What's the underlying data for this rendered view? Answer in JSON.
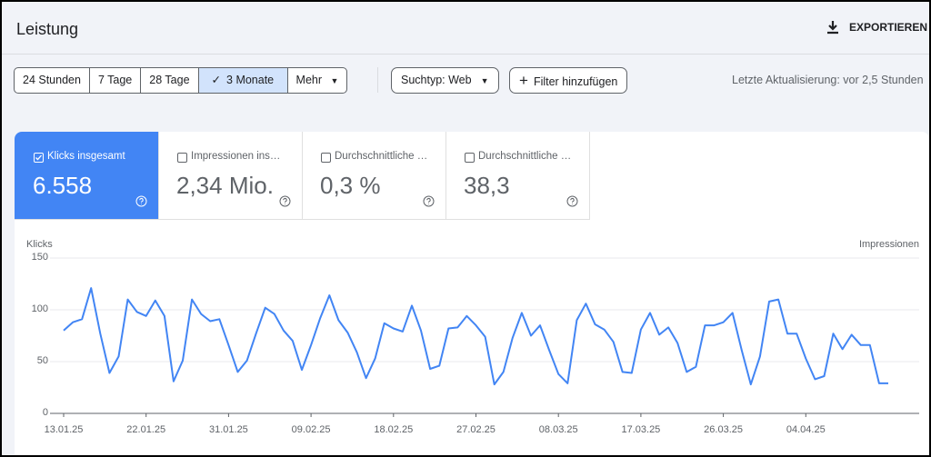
{
  "header": {
    "title": "Leistung",
    "export": "EXPORTIEREN"
  },
  "toolbar": {
    "ranges": [
      "24 Stunden",
      "7 Tage",
      "28 Tage",
      "3 Monate",
      "Mehr"
    ],
    "search_type": "Suchtyp: Web",
    "filter": "Filter hinzufügen",
    "last_update": "Letzte Aktualisierung: vor 2,5 Stunden"
  },
  "metrics": [
    {
      "label": "Klicks insgesamt",
      "value": "6.558"
    },
    {
      "label": "Impressionen ins…",
      "value": "2,34 Mio."
    },
    {
      "label": "Durchschnittliche …",
      "value": "0,3 %"
    },
    {
      "label": "Durchschnittliche …",
      "value": "38,3"
    }
  ],
  "chart_data": {
    "type": "line",
    "y_axis_label": "Klicks",
    "y2_axis_label": "Impressionen",
    "categories": [
      "13.01.25",
      null,
      null,
      null,
      null,
      null,
      null,
      null,
      null,
      "22.01.25",
      null,
      null,
      null,
      null,
      null,
      null,
      null,
      null,
      "31.01.25",
      null,
      null,
      null,
      null,
      null,
      null,
      null,
      null,
      "09.02.25",
      null,
      null,
      null,
      null,
      null,
      null,
      null,
      null,
      "18.02.25",
      null,
      null,
      null,
      null,
      null,
      null,
      null,
      null,
      "27.02.25",
      null,
      null,
      null,
      null,
      null,
      null,
      null,
      null,
      "08.03.25",
      null,
      null,
      null,
      null,
      null,
      null,
      null,
      null,
      "17.03.25",
      null,
      null,
      null,
      null,
      null,
      null,
      null,
      null,
      "26.03.25",
      null,
      null,
      null,
      null,
      null,
      null,
      null,
      null,
      "04.04.25",
      null,
      null,
      null,
      null,
      null,
      null,
      null,
      null,
      null
    ],
    "values": [
      80,
      88,
      91,
      121,
      77,
      39,
      55,
      110,
      98,
      94,
      109,
      94,
      31,
      51,
      110,
      96,
      89,
      91,
      66,
      40,
      51,
      77,
      102,
      96,
      80,
      70,
      42,
      66,
      92,
      114,
      90,
      78,
      59,
      34,
      53,
      87,
      82,
      79,
      104,
      80,
      43,
      46,
      82,
      83,
      94,
      85,
      74,
      28,
      40,
      73,
      97,
      75,
      85,
      61,
      38,
      29,
      90,
      106,
      86,
      81,
      69,
      40,
      39,
      81,
      97,
      76,
      83,
      68,
      40,
      45,
      85,
      85,
      88,
      97,
      61,
      28,
      55,
      108,
      110,
      77,
      77,
      53,
      33,
      36,
      77,
      62,
      76,
      66,
      66,
      29,
      29
    ],
    "color": "#4285f4",
    "ylim": [
      0,
      150
    ],
    "yticks": [
      0,
      50,
      100,
      150
    ],
    "grid": true
  }
}
